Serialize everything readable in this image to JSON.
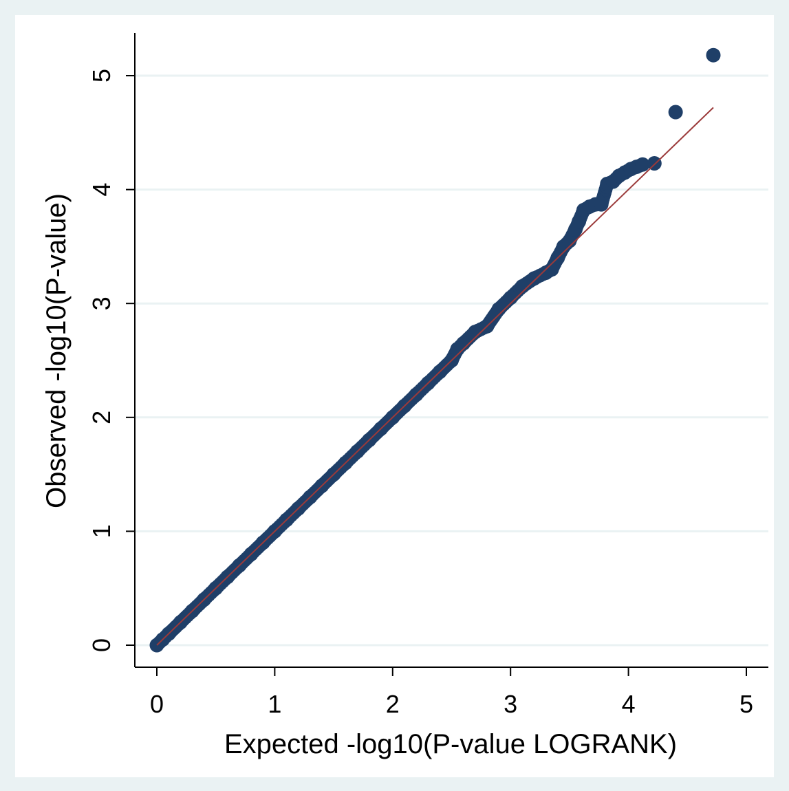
{
  "chart_data": {
    "type": "scatter",
    "xlabel": "Expected -log10(P-value LOGRANK)",
    "ylabel": "Observed -log10(P-value)",
    "xlim": [
      0,
      5
    ],
    "ylim": [
      0,
      5
    ],
    "x_ticks": [
      "0",
      "1",
      "2",
      "3",
      "4",
      "5"
    ],
    "y_ticks": [
      "0",
      "1",
      "2",
      "3",
      "4",
      "5"
    ],
    "grid": "horizontal",
    "reference_line": {
      "from": [
        0,
        0
      ],
      "to": [
        4.72,
        4.72
      ],
      "color": "#9b3a3a"
    },
    "marker_color": "#1f3f68",
    "series": [
      {
        "points": [
          [
            0,
            0
          ],
          [
            0.05,
            0.05
          ],
          [
            0.1,
            0.1
          ],
          [
            0.2,
            0.2
          ],
          [
            0.3,
            0.3
          ],
          [
            0.4,
            0.4
          ],
          [
            0.5,
            0.5
          ],
          [
            0.6,
            0.6
          ],
          [
            0.7,
            0.7
          ],
          [
            0.8,
            0.8
          ],
          [
            0.9,
            0.9
          ],
          [
            1.0,
            1.0
          ],
          [
            1.1,
            1.1
          ],
          [
            1.2,
            1.2
          ],
          [
            1.3,
            1.3
          ],
          [
            1.4,
            1.4
          ],
          [
            1.5,
            1.5
          ],
          [
            1.6,
            1.6
          ],
          [
            1.7,
            1.7
          ],
          [
            1.8,
            1.8
          ],
          [
            1.9,
            1.9
          ],
          [
            2.0,
            2.0
          ],
          [
            2.1,
            2.1
          ],
          [
            2.2,
            2.2
          ],
          [
            2.3,
            2.3
          ],
          [
            2.4,
            2.4
          ],
          [
            2.5,
            2.5
          ],
          [
            2.55,
            2.6
          ],
          [
            2.6,
            2.65
          ],
          [
            2.7,
            2.75
          ],
          [
            2.8,
            2.8
          ],
          [
            2.9,
            2.95
          ],
          [
            3.0,
            3.05
          ],
          [
            3.1,
            3.15
          ],
          [
            3.2,
            3.22
          ],
          [
            3.3,
            3.27
          ],
          [
            3.35,
            3.3
          ],
          [
            3.4,
            3.4
          ],
          [
            3.45,
            3.5
          ],
          [
            3.5,
            3.55
          ],
          [
            3.55,
            3.65
          ],
          [
            3.58,
            3.72
          ],
          [
            3.62,
            3.82
          ],
          [
            3.67,
            3.85
          ],
          [
            3.72,
            3.87
          ],
          [
            3.77,
            3.87
          ],
          [
            3.82,
            4.05
          ],
          [
            3.87,
            4.07
          ],
          [
            3.92,
            4.12
          ],
          [
            3.97,
            4.15
          ],
          [
            4.02,
            4.18
          ],
          [
            4.07,
            4.2
          ],
          [
            4.12,
            4.22
          ],
          [
            4.22,
            4.23
          ],
          [
            4.4,
            4.68
          ],
          [
            4.72,
            5.18
          ]
        ]
      }
    ]
  }
}
